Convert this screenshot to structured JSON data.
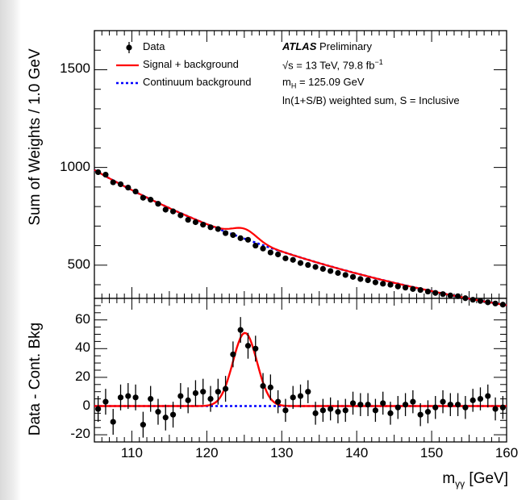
{
  "chart_data": [
    {
      "panel": "main",
      "type": "scatter",
      "ylabel": "Sum of Weights / 1.0 GeV",
      "xlim": [
        105,
        160
      ],
      "ylim": [
        330,
        1700
      ],
      "yticks": [
        500,
        1000,
        1500
      ],
      "legend": {
        "placement": "top-left",
        "entries": [
          {
            "key": "data",
            "label": "Data",
            "color": "#000000"
          },
          {
            "key": "sb",
            "label": "Signal + background",
            "color": "#ff0000"
          },
          {
            "key": "bkg",
            "label": "Continuum background",
            "color": "#0000ff"
          }
        ]
      },
      "annotations": {
        "experiment": "ATLAS",
        "status": "Preliminary",
        "energy": "√s = 13 TeV, 79.8 fb",
        "energy_sup": "−1",
        "mass_pre": "m",
        "mass_sub": "H",
        "mass_post": " = 125.09 GeV",
        "weighting": "ln(1+S/B) weighted sum, S = Inclusive"
      },
      "series": [
        {
          "name": "Data",
          "x": [
            105.5,
            106.5,
            107.5,
            108.5,
            109.5,
            110.5,
            111.5,
            112.5,
            113.5,
            114.5,
            115.5,
            116.5,
            117.5,
            118.5,
            119.5,
            120.5,
            121.5,
            122.5,
            123.5,
            124.5,
            125.5,
            126.5,
            127.5,
            128.5,
            129.5,
            130.5,
            131.5,
            132.5,
            133.5,
            134.5,
            135.5,
            136.5,
            137.5,
            138.5,
            139.5,
            140.5,
            141.5,
            142.5,
            143.5,
            144.5,
            145.5,
            146.5,
            147.5,
            148.5,
            149.5,
            150.5,
            151.5,
            152.5,
            153.5,
            154.5,
            155.5,
            156.5,
            157.5,
            158.5,
            159.5
          ],
          "y": [
            976,
            963,
            924,
            914,
            897,
            877,
            845,
            835,
            814,
            784,
            775,
            755,
            732,
            720,
            707,
            694,
            685,
            664,
            654,
            638,
            630,
            600,
            585,
            565,
            555,
            535,
            527,
            511,
            501,
            491,
            481,
            470,
            460,
            450,
            440,
            429,
            423,
            412,
            405,
            400,
            391,
            385,
            378,
            373,
            365,
            358,
            352,
            345,
            341,
            331,
            323,
            317,
            310,
            304,
            298
          ],
          "err": [
            14,
            14,
            14,
            14,
            14,
            14,
            14,
            14,
            14,
            14,
            14,
            14,
            14,
            13,
            13,
            13,
            13,
            13,
            13,
            13,
            13,
            13,
            13,
            13,
            12,
            12,
            12,
            12,
            12,
            12,
            12,
            11,
            11,
            11,
            11,
            11,
            11,
            11,
            11,
            11,
            11,
            10,
            10,
            10,
            10,
            10,
            10,
            10,
            10,
            10,
            10,
            10,
            9,
            9,
            9
          ]
        },
        {
          "name": "Signal + background",
          "color": "#ff0000"
        },
        {
          "name": "Continuum background",
          "color": "#0000ff"
        }
      ]
    },
    {
      "panel": "ratio",
      "type": "scatter",
      "xlabel": "m",
      "xlabel_sub": "γγ",
      "xlabel_unit": " [GeV]",
      "ylabel": "Data - Cont. Bkg",
      "xlim": [
        105,
        160
      ],
      "ylim": [
        -25,
        75
      ],
      "yticks": [
        -20,
        0,
        20,
        40,
        60
      ],
      "xticks": [
        110,
        120,
        130,
        140,
        150,
        160
      ],
      "series": [
        {
          "name": "Data",
          "x": [
            105.5,
            106.5,
            107.5,
            108.5,
            109.5,
            110.5,
            111.5,
            112.5,
            113.5,
            114.5,
            115.5,
            116.5,
            117.5,
            118.5,
            119.5,
            120.5,
            121.5,
            122.5,
            123.5,
            124.5,
            125.5,
            126.5,
            127.5,
            128.5,
            129.5,
            130.5,
            131.5,
            132.5,
            133.5,
            134.5,
            135.5,
            136.5,
            137.5,
            138.5,
            139.5,
            140.5,
            141.5,
            142.5,
            143.5,
            144.5,
            145.5,
            146.5,
            147.5,
            148.5,
            149.5,
            150.5,
            151.5,
            152.5,
            153.5,
            154.5,
            155.5,
            156.5,
            157.5,
            158.5,
            159.5
          ],
          "y": [
            -2,
            3,
            -11,
            6,
            7,
            6,
            -13,
            5,
            -4,
            -8,
            -6,
            7,
            4,
            9,
            10,
            5,
            10,
            12,
            36,
            53,
            42,
            40,
            14,
            13,
            3,
            -3,
            6,
            7,
            10,
            -5,
            -3,
            -2,
            -4,
            -3,
            2,
            1,
            1,
            -3,
            2,
            -5,
            -1,
            1,
            3,
            -6,
            -4,
            -1,
            3,
            1,
            1,
            -1,
            4,
            5,
            7,
            -2,
            -1
          ],
          "err": [
            9,
            9,
            9,
            9,
            9,
            9,
            9,
            9,
            9,
            9,
            9,
            9,
            9,
            9,
            9,
            9,
            9,
            9,
            9,
            9,
            9,
            9,
            9,
            9,
            8,
            8,
            8,
            8,
            8,
            8,
            8,
            8,
            8,
            8,
            8,
            8,
            8,
            8,
            8,
            8,
            8,
            8,
            8,
            8,
            8,
            8,
            8,
            8,
            8,
            8,
            8,
            8,
            8,
            8,
            8
          ]
        },
        {
          "name": "Signal + background",
          "color": "#ff0000",
          "peak": 51,
          "mean": 125.09,
          "sigma": 1.6
        },
        {
          "name": "Continuum background",
          "color": "#0000ff"
        }
      ]
    }
  ]
}
